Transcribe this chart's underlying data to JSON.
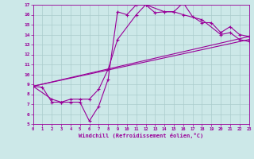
{
  "xlabel": "Windchill (Refroidissement éolien,°C)",
  "bg_color": "#cce8e8",
  "line_color": "#990099",
  "grid_color": "#aacccc",
  "xlim": [
    0,
    23
  ],
  "ylim": [
    5,
    17
  ],
  "xticks": [
    0,
    1,
    2,
    3,
    4,
    5,
    6,
    7,
    8,
    9,
    10,
    11,
    12,
    13,
    14,
    15,
    16,
    17,
    18,
    19,
    20,
    21,
    22,
    23
  ],
  "yticks": [
    5,
    6,
    7,
    8,
    9,
    10,
    11,
    12,
    13,
    14,
    15,
    16,
    17
  ],
  "line1_x": [
    0,
    1,
    2,
    3,
    4,
    5,
    6,
    7,
    8,
    9,
    10,
    11,
    12,
    13,
    14,
    15,
    16,
    17,
    18,
    19,
    20,
    21,
    22,
    23
  ],
  "line1_y": [
    8.8,
    8.7,
    7.2,
    7.2,
    7.2,
    7.2,
    5.3,
    6.8,
    9.5,
    16.3,
    16.0,
    17.0,
    17.0,
    16.2,
    16.3,
    16.3,
    17.2,
    15.8,
    15.2,
    15.2,
    14.2,
    14.8,
    14.0,
    13.8
  ],
  "line2_x": [
    0,
    2,
    3,
    4,
    5,
    6,
    7,
    8,
    9,
    11,
    12,
    14,
    15,
    16,
    18,
    20,
    21,
    22,
    23
  ],
  "line2_y": [
    8.8,
    7.5,
    7.2,
    7.5,
    7.5,
    7.5,
    8.5,
    10.5,
    13.5,
    16.0,
    17.0,
    16.3,
    16.3,
    16.0,
    15.5,
    14.0,
    14.2,
    13.5,
    13.3
  ],
  "line3_x": [
    0,
    23
  ],
  "line3_y": [
    8.8,
    13.5
  ],
  "line4_x": [
    0,
    23
  ],
  "line4_y": [
    8.8,
    13.8
  ]
}
